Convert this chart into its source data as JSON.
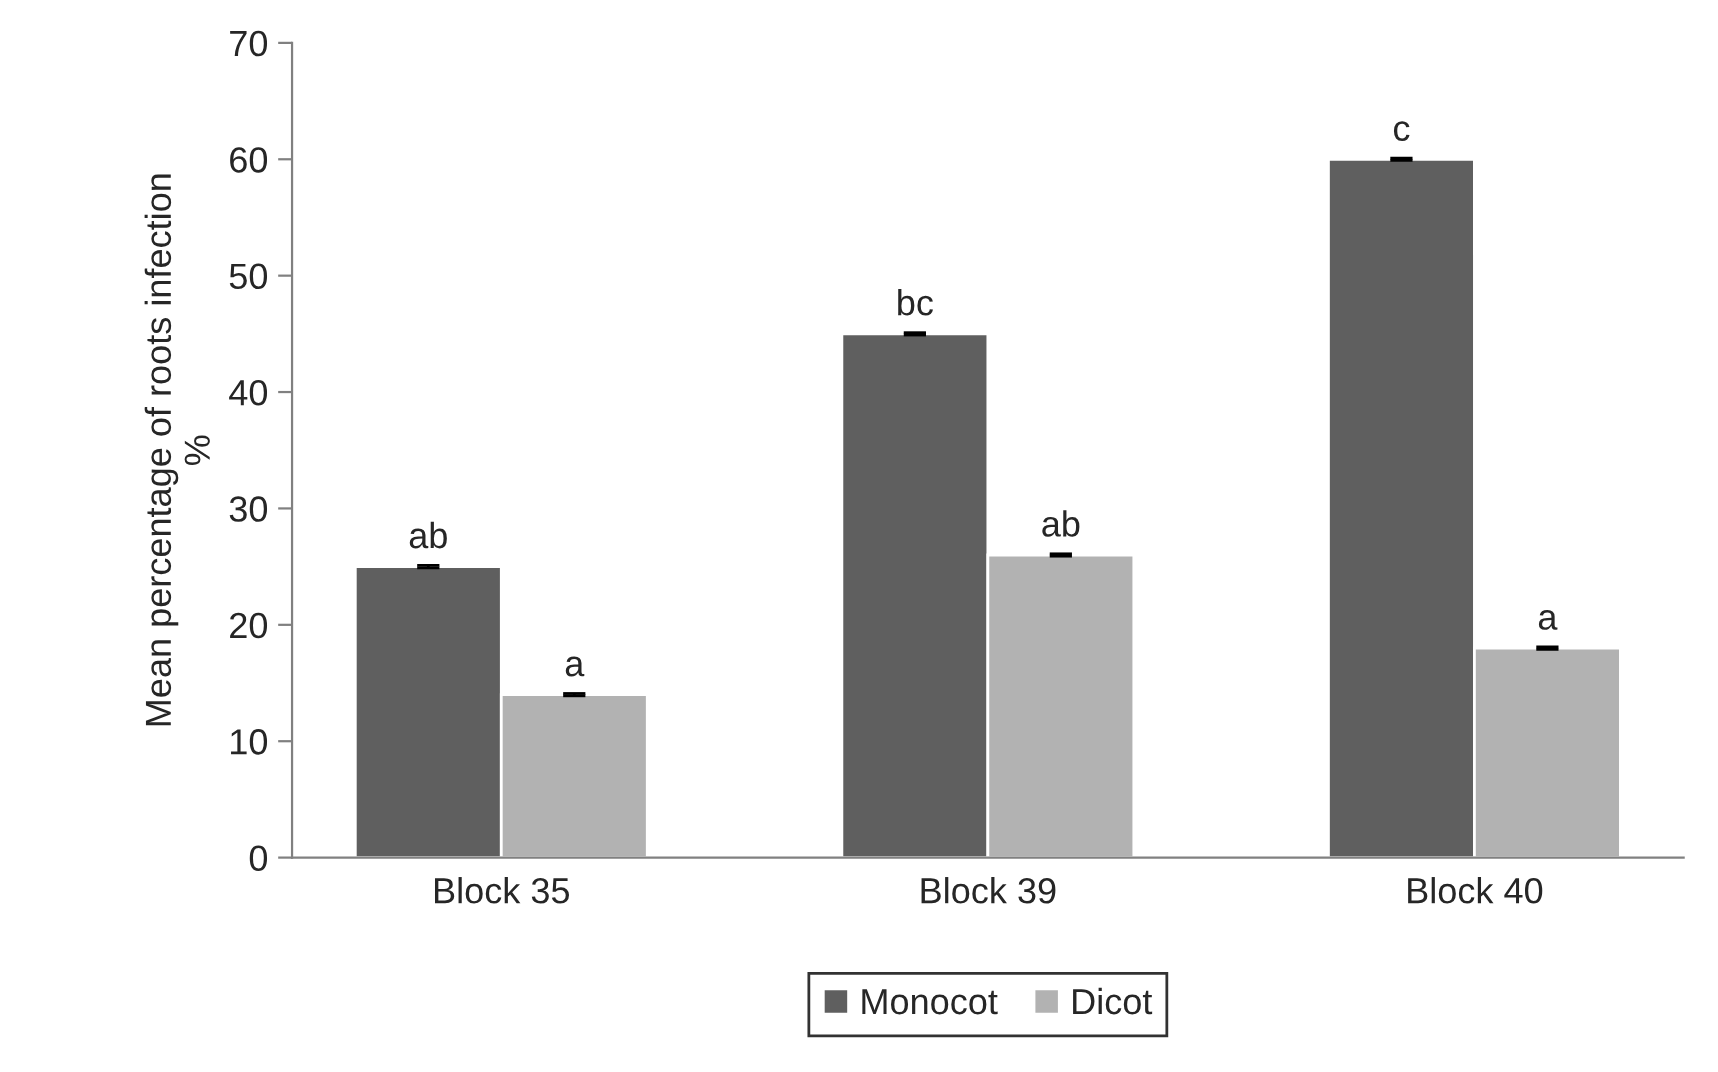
{
  "chart_data": {
    "type": "bar",
    "ylabel": "Mean percentage of roots infection\n%",
    "categories": [
      "Block 35",
      "Block 39",
      "Block 40"
    ],
    "series": [
      {
        "name": "Monocot",
        "color": "#5f5f5f",
        "values": [
          25,
          45,
          60
        ],
        "errors": [
          0.1,
          0.1,
          0.1
        ],
        "value_labels": [
          "ab",
          "bc",
          "c"
        ]
      },
      {
        "name": "Dicot",
        "color": "#b2b2b2",
        "values": [
          14,
          26,
          18
        ],
        "errors": [
          0.1,
          0.1,
          0.1
        ],
        "value_labels": [
          "a",
          "ab",
          "a"
        ]
      }
    ],
    "ylim": [
      0,
      70
    ],
    "yticks": [
      0,
      10,
      20,
      30,
      40,
      50,
      60,
      70
    ],
    "grid": false,
    "legend": "bottom"
  }
}
